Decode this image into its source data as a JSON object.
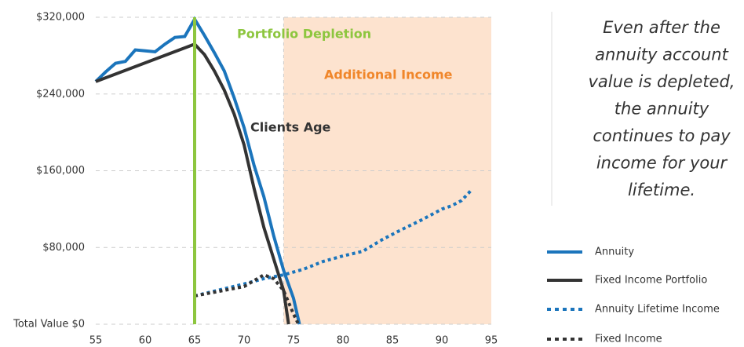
{
  "chart_data": {
    "type": "line",
    "xlim": [
      55,
      95
    ],
    "xticks": [
      55,
      60,
      65,
      70,
      75,
      80,
      85,
      90,
      95
    ],
    "ylim": [
      0,
      320000
    ],
    "yticks": [
      {
        "value": 0,
        "label": "Total Value $0"
      },
      {
        "value": 80000,
        "label": "$80,000"
      },
      {
        "value": 160000,
        "label": "$160,000"
      },
      {
        "value": 240000,
        "label": "$240,000"
      },
      {
        "value": 320000,
        "label": "$320,000"
      }
    ],
    "grid": true,
    "shaded_region": {
      "xrange": [
        74,
        95
      ],
      "color": "#fde3cf"
    },
    "vertical_line": {
      "x": 65,
      "color": "#8dc63f"
    },
    "annotations": [
      {
        "text": "Portfolio Depletion",
        "color": "#8dc63f"
      },
      {
        "text": "Additional Income",
        "color": "#f0862a"
      },
      {
        "text": "Clients Age",
        "color": "#333333"
      }
    ],
    "series": [
      {
        "name": "Annuity",
        "color": "#1b75bc",
        "style": "solid",
        "x": [
          55,
          56,
          57,
          58,
          59,
          60,
          61,
          62,
          63,
          64,
          65,
          66,
          67,
          68,
          69,
          70,
          71,
          72,
          73,
          74,
          75,
          75.6
        ],
        "values": [
          253000,
          263000,
          272000,
          274000,
          286000,
          285000,
          284000,
          292000,
          299000,
          300000,
          318000,
          301000,
          283000,
          264000,
          236000,
          205000,
          166000,
          133000,
          92000,
          56000,
          27000,
          0
        ]
      },
      {
        "name": "Fixed Income Portfolio",
        "color": "#333333",
        "style": "solid",
        "x": [
          55,
          65,
          66,
          67,
          68,
          69,
          70,
          71,
          72,
          73,
          74,
          74.5
        ],
        "values": [
          253000,
          292000,
          281000,
          264000,
          244000,
          219000,
          187000,
          142000,
          101000,
          68000,
          35000,
          0
        ]
      },
      {
        "name": "Annuity Lifetime Income",
        "color": "#1b75bc",
        "style": "dotted",
        "x": [
          65,
          70,
          72,
          74,
          76,
          78,
          80,
          82,
          84,
          86,
          88,
          90,
          91,
          92,
          93
        ],
        "values": [
          29500,
          42000,
          47500,
          51500,
          57300,
          65500,
          71200,
          76000,
          88400,
          99000,
          109000,
          120000,
          123500,
          129000,
          140000
        ]
      },
      {
        "name": "Fixed Income",
        "color": "#333333",
        "style": "dotted",
        "x": [
          65,
          70,
          72,
          73,
          74,
          75,
          75.5
        ],
        "values": [
          29500,
          39300,
          51500,
          47500,
          35000,
          10600,
          0
        ]
      }
    ]
  },
  "side_note": {
    "lines": [
      "Even after the",
      "annuity account",
      "value is depleted,",
      "the annuity",
      "continues to pay",
      "income for your",
      "lifetime."
    ]
  }
}
